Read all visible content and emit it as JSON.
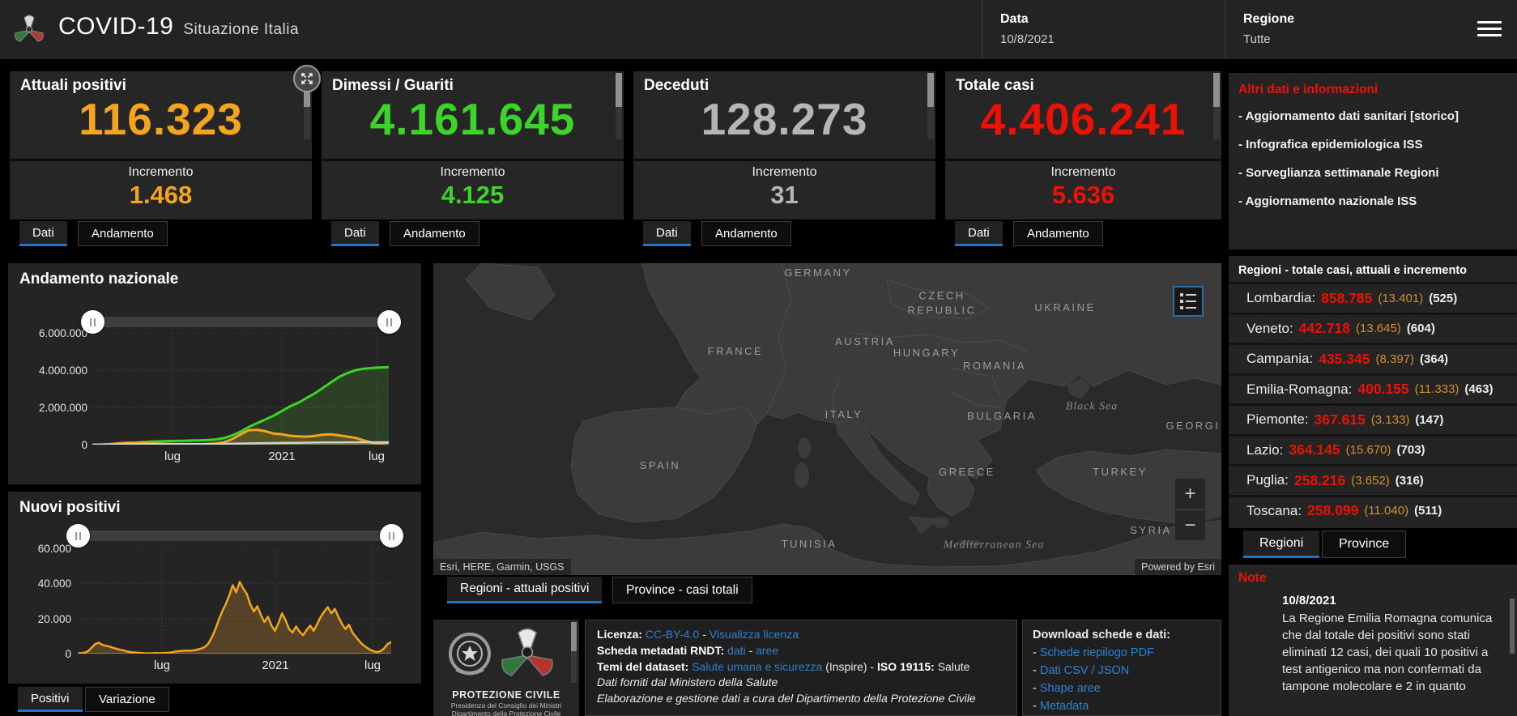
{
  "header": {
    "app_title": "COVID-19",
    "app_subtitle": "Situazione Italia",
    "date_label": "Data",
    "date_value": "10/8/2021",
    "region_label": "Regione",
    "region_value": "Tutte"
  },
  "cards": [
    {
      "title": "Attuali positivi",
      "value": "116.323",
      "color": "#f4a51f",
      "increment_label": "Incremento",
      "increment": "1.468",
      "tab_dati": "Dati",
      "tab_andamento": "Andamento"
    },
    {
      "title": "Dimessi / Guariti",
      "value": "4.161.645",
      "color": "#3ed32a",
      "increment_label": "Incremento",
      "increment": "4.125",
      "tab_dati": "Dati",
      "tab_andamento": "Andamento"
    },
    {
      "title": "Deceduti",
      "value": "128.273",
      "color": "#b5b5b5",
      "increment_label": "Incremento",
      "increment": "31",
      "tab_dati": "Dati",
      "tab_andamento": "Andamento"
    },
    {
      "title": "Totale casi",
      "value": "4.406.241",
      "color": "#ea1205",
      "increment_label": "Incremento",
      "increment": "5.636",
      "tab_dati": "Dati",
      "tab_andamento": "Andamento"
    }
  ],
  "chart_data": [
    {
      "type": "area",
      "title": "Andamento nazionale",
      "ylim": [
        0,
        6000000
      ],
      "yticks": [
        "0",
        "2.000.000",
        "4.000.000",
        "6.000.000"
      ],
      "xticks": [
        "lug",
        "2021",
        "lug"
      ],
      "grid": true,
      "legend_position": "none",
      "series": [
        {
          "name": "dimessi_guariti",
          "color": "#3ed32a",
          "width": 3,
          "fill": "rgba(70,165,35,0.22)",
          "values": [
            0,
            1000,
            4000,
            20000,
            60000,
            100000,
            130000,
            160000,
            180000,
            190000,
            200000,
            210000,
            220000,
            230000,
            250000,
            280000,
            350000,
            500000,
            700000,
            950000,
            1150000,
            1350000,
            1550000,
            1800000,
            2050000,
            2250000,
            2500000,
            2750000,
            3050000,
            3350000,
            3650000,
            3850000,
            4000000,
            4080000,
            4120000,
            4140000,
            4161645
          ]
        },
        {
          "name": "attuali_positivi",
          "color": "#f4a51f",
          "width": 3,
          "fill": "rgba(214,143,44,0.25)",
          "values": [
            0,
            5000,
            20000,
            60000,
            100000,
            105000,
            90000,
            70000,
            50000,
            35000,
            25000,
            15000,
            13000,
            15000,
            30000,
            60000,
            130000,
            300000,
            550000,
            780000,
            800000,
            720000,
            600000,
            560000,
            480000,
            450000,
            430000,
            470000,
            540000,
            550000,
            500000,
            430000,
            360000,
            220000,
            100000,
            60000,
            116323
          ]
        },
        {
          "name": "deceduti",
          "color": "#d2d2d2",
          "width": 2.5,
          "fill": null,
          "values": [
            0,
            1000,
            5000,
            15000,
            25000,
            30000,
            33000,
            34000,
            34500,
            35000,
            35200,
            35500,
            35800,
            36000,
            37000,
            39000,
            43000,
            52000,
            62000,
            71000,
            77000,
            82000,
            87000,
            92000,
            97000,
            102000,
            107000,
            112000,
            116000,
            120000,
            123000,
            125000,
            126000,
            127000,
            127500,
            128000,
            128273
          ]
        }
      ]
    },
    {
      "type": "area",
      "title": "Nuovi positivi",
      "ylim": [
        0,
        60000
      ],
      "yticks": [
        "0",
        "20.000",
        "40.000",
        "60.000"
      ],
      "xticks": [
        "lug",
        "2021",
        "lug"
      ],
      "grid": true,
      "legend_position": "none",
      "tab_positivi": "Positivi",
      "tab_variazione": "Variazione",
      "series": [
        {
          "name": "nuovi_positivi",
          "color": "#f4a51f",
          "width": 2.5,
          "fill": "rgba(214,143,44,0.28)",
          "values": [
            100,
            300,
            600,
            1500,
            3500,
            5500,
            6200,
            5000,
            4500,
            4000,
            3300,
            2800,
            2200,
            1800,
            1200,
            900,
            700,
            500,
            350,
            250,
            200,
            250,
            300,
            250,
            300,
            400,
            550,
            900,
            1300,
            1500,
            1600,
            1800,
            1600,
            1900,
            2300,
            2800,
            3700,
            5500,
            9000,
            13500,
            19000,
            24000,
            28000,
            33000,
            39000,
            35000,
            40900,
            37000,
            34000,
            28000,
            24000,
            27000,
            22000,
            18000,
            21000,
            16000,
            13000,
            17500,
            23000,
            19000,
            14000,
            12000,
            15500,
            12500,
            10500,
            13500,
            16000,
            13000,
            17000,
            21000,
            24000,
            26500,
            23000,
            25500,
            21000,
            17000,
            14000,
            16500,
            12000,
            9500,
            7000,
            5000,
            3500,
            2200,
            1300,
            900,
            1500,
            3000,
            5500,
            6600
          ]
        }
      ]
    }
  ],
  "map": {
    "attribution": "Esri, HERE, Garmin, USGS",
    "powered_by": "Powered by Esri",
    "tab_regioni": "Regioni - attuali positivi",
    "tab_province": "Province - casi totali",
    "zoom_in": "+",
    "zoom_out": "−",
    "labels": [
      {
        "text": "GERMANY"
      },
      {
        "text": "CZECH\nREPUBLIC"
      },
      {
        "text": "UKRAINE"
      },
      {
        "text": "AUSTRIA"
      },
      {
        "text": "FRANCE"
      },
      {
        "text": "HUNGARY"
      },
      {
        "text": "ROMANIA"
      },
      {
        "text": "ITALY"
      },
      {
        "text": "BULGARIA"
      },
      {
        "text": "Black Sea"
      },
      {
        "text": "GEORGI"
      },
      {
        "text": "SPAIN"
      },
      {
        "text": "GREECE"
      },
      {
        "text": "TURKEY"
      },
      {
        "text": "TUNISIA"
      },
      {
        "text": "Mediterranean Sea"
      },
      {
        "text": "SYRIA"
      }
    ]
  },
  "sidebar": {
    "altri_dati": {
      "title": "Altri dati e informazioni",
      "links": [
        "- Aggiornamento dati sanitari [storico]",
        "- Infografica epidemiologica ISS",
        "- Sorveglianza settimanale Regioni",
        "- Aggiornamento nazionale ISS"
      ]
    },
    "regioni": {
      "header": "Regioni - totale casi, attuali e incremento",
      "rows": [
        {
          "name": "Lombardia:",
          "total": "858.785",
          "attuali": "(13.401)",
          "incremento": "(525)"
        },
        {
          "name": "Veneto:",
          "total": "442.718",
          "attuali": "(13.645)",
          "incremento": "(604)"
        },
        {
          "name": "Campania:",
          "total": "435.345",
          "attuali": "(8.397)",
          "incremento": "(364)"
        },
        {
          "name": "Emilia-Romagna:",
          "total": "400.155",
          "attuali": "(11.333)",
          "incremento": "(463)"
        },
        {
          "name": "Piemonte:",
          "total": "367.615",
          "attuali": "(3.133)",
          "incremento": "(147)"
        },
        {
          "name": "Lazio:",
          "total": "364.145",
          "attuali": "(15.670)",
          "incremento": "(703)"
        },
        {
          "name": "Puglia:",
          "total": "258.216",
          "attuali": "(3.652)",
          "incremento": "(316)"
        },
        {
          "name": "Toscana:",
          "total": "258.099",
          "attuali": "(11.040)",
          "incremento": "(511)"
        }
      ],
      "tab_regioni": "Regioni",
      "tab_province": "Province"
    },
    "note": {
      "title": "Note",
      "date": "10/8/2021",
      "text": "La Regione Emilia Romagna comunica che dal totale dei positivi sono stati eliminati 12 casi, dei quali 10 positivi a test antigenico ma non confermati da tampone molecolare e 2 in quanto"
    }
  },
  "footer": {
    "logo": {
      "line1": "PROTEZIONE CIVILE",
      "line2": "Presidenza del Consiglio dei Ministri",
      "line3": "Dipartimento della Protezione Civile"
    },
    "license": {
      "l1_label": "Licenza:",
      "l1_link1": "CC-BY-4.0",
      "l1_sep": " - ",
      "l1_link2": "Visualizza licenza",
      "l2_label": "Scheda metadati RNDT:",
      "l2_link1": "dati",
      "l2_sep": " - ",
      "l2_link2": "aree",
      "l3_label": "Temi del dataset:",
      "l3_link1": "Salute umana e sicurezza",
      "l3_mid": " (Inspire) - ",
      "l3_label2": "ISO 19115:",
      "l3_end": " Salute",
      "l4": "Dati forniti dal Ministero della Salute",
      "l5": "Elaborazione e gestione dati a cura del Dipartimento della Protezione Civile"
    },
    "download": {
      "title": "Download schede e dati:",
      "prefix": "- ",
      "links": [
        "Schede riepilogo PDF",
        "Dati CSV / JSON",
        "Shape aree",
        "Metadata"
      ]
    }
  }
}
